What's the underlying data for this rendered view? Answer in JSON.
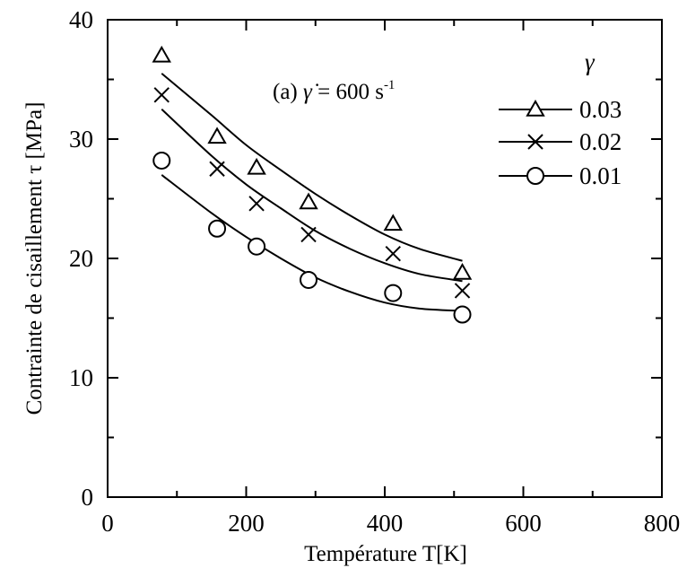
{
  "chart_data": {
    "type": "scatter",
    "xlabel": "Température T[K]",
    "ylabel": "Contrainte de cisaillement   τ [MPa]",
    "annotation": {
      "prefix": "(a) ",
      "symbol": "γ̇",
      "suffix": " = 600 s",
      "superscript": "-1"
    },
    "legend_title": "γ",
    "legend_placement": "top-right",
    "xlim": [
      0,
      800
    ],
    "ylim": [
      0,
      40
    ],
    "xticks": [
      0,
      200,
      400,
      600,
      800
    ],
    "yticks": [
      0,
      10,
      20,
      30,
      40
    ],
    "xtick_labels": [
      "0",
      "200",
      "400",
      "600",
      "800"
    ],
    "ytick_labels": [
      "0",
      "10",
      "20",
      "30",
      "40"
    ],
    "grid": false,
    "series": [
      {
        "name": "0.03",
        "marker": "triangle",
        "points": [
          [
            78,
            37.0
          ],
          [
            158,
            30.2
          ],
          [
            215,
            27.6
          ],
          [
            290,
            24.7
          ],
          [
            412,
            22.9
          ],
          [
            512,
            18.8
          ]
        ],
        "fit": [
          [
            78,
            35.5
          ],
          [
            150,
            32.0
          ],
          [
            200,
            29.5
          ],
          [
            250,
            27.4
          ],
          [
            300,
            25.4
          ],
          [
            350,
            23.6
          ],
          [
            400,
            22.0
          ],
          [
            450,
            20.8
          ],
          [
            512,
            19.8
          ]
        ]
      },
      {
        "name": "0.02",
        "marker": "x",
        "points": [
          [
            78,
            33.7
          ],
          [
            158,
            27.5
          ],
          [
            215,
            24.6
          ],
          [
            290,
            22.0
          ],
          [
            412,
            20.4
          ],
          [
            512,
            17.3
          ]
        ],
        "fit": [
          [
            78,
            32.5
          ],
          [
            150,
            28.6
          ],
          [
            200,
            26.2
          ],
          [
            250,
            24.2
          ],
          [
            300,
            22.3
          ],
          [
            350,
            20.8
          ],
          [
            400,
            19.6
          ],
          [
            450,
            18.7
          ],
          [
            512,
            18.1
          ]
        ]
      },
      {
        "name": "0.01",
        "marker": "circle",
        "points": [
          [
            78,
            28.2
          ],
          [
            158,
            22.5
          ],
          [
            215,
            21.0
          ],
          [
            290,
            18.2
          ],
          [
            412,
            17.1
          ],
          [
            512,
            15.3
          ]
        ],
        "fit": [
          [
            78,
            27.0
          ],
          [
            150,
            23.8
          ],
          [
            200,
            21.8
          ],
          [
            250,
            20.0
          ],
          [
            300,
            18.4
          ],
          [
            350,
            17.2
          ],
          [
            400,
            16.3
          ],
          [
            450,
            15.8
          ],
          [
            512,
            15.6
          ]
        ]
      }
    ]
  }
}
